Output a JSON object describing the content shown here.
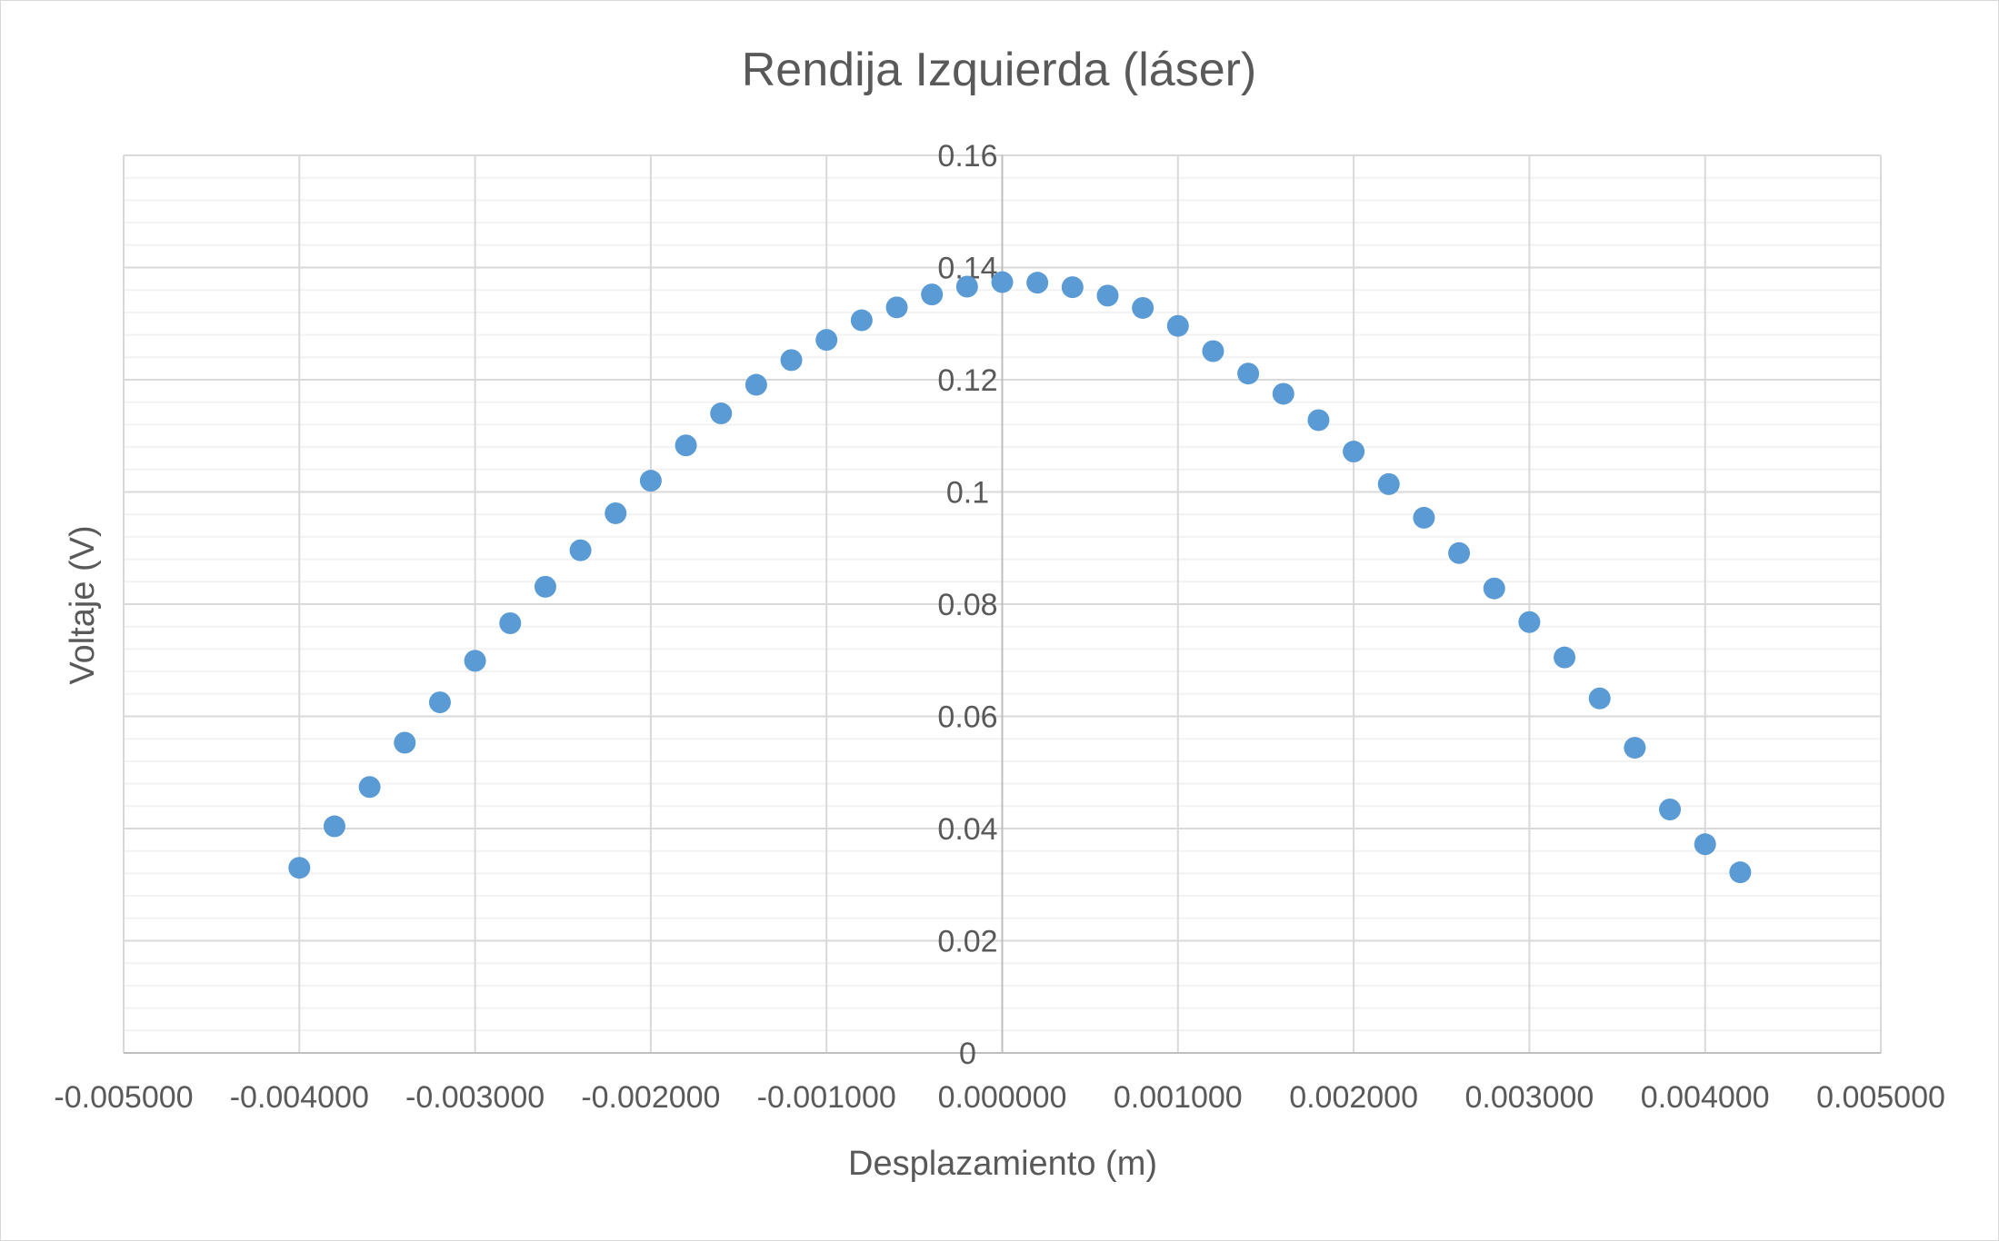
{
  "chart_data": {
    "type": "scatter",
    "title": "Rendija Izquierda (láser)",
    "xlabel": "Desplazamiento (m)",
    "ylabel": "Voltaje (V)",
    "xlim": [
      -0.005,
      0.005
    ],
    "ylim": [
      0,
      0.16
    ],
    "x_ticks": [
      -0.005,
      -0.004,
      -0.003,
      -0.002,
      -0.001,
      0,
      0.001,
      0.002,
      0.003,
      0.004,
      0.005
    ],
    "x_tick_labels": [
      "-0.005000",
      "-0.004000",
      "-0.003000",
      "-0.002000",
      "-0.001000",
      "0.000000",
      "0.001000",
      "0.002000",
      "0.003000",
      "0.004000",
      "0.005000"
    ],
    "y_ticks": [
      0,
      0.02,
      0.04,
      0.06,
      0.08,
      0.1,
      0.12,
      0.14,
      0.16
    ],
    "y_tick_labels": [
      "0",
      "0.02",
      "0.04",
      "0.06",
      "0.08",
      "0.1",
      "0.12",
      "0.14",
      "0.16"
    ],
    "grid": {
      "major": true,
      "minor": true
    },
    "series": [
      {
        "color": "#5b9bd5",
        "x": [
          -0.004,
          -0.0038,
          -0.0036,
          -0.0034,
          -0.0032,
          -0.003,
          -0.0028,
          -0.0026,
          -0.0024,
          -0.0022,
          -0.002,
          -0.0018,
          -0.0016,
          -0.0014,
          -0.0012,
          -0.001,
          -0.0008,
          -0.0006,
          -0.0004,
          -0.0002,
          0.0,
          0.0002,
          0.0004,
          0.0006,
          0.0008,
          0.001,
          0.0012,
          0.0014,
          0.0016,
          0.0018,
          0.002,
          0.0022,
          0.0024,
          0.0026,
          0.0028,
          0.003,
          0.0032,
          0.0034,
          0.0036,
          0.0038,
          0.004,
          0.0042
        ],
        "y": [
          0.033,
          0.0404,
          0.0474,
          0.0553,
          0.0625,
          0.0699,
          0.0766,
          0.0831,
          0.0896,
          0.0962,
          0.102,
          0.1083,
          0.114,
          0.1191,
          0.1235,
          0.1271,
          0.1306,
          0.1329,
          0.1352,
          0.1366,
          0.1374,
          0.1373,
          0.1365,
          0.135,
          0.1328,
          0.1296,
          0.1251,
          0.1211,
          0.1175,
          0.1128,
          0.1072,
          0.1014,
          0.0954,
          0.0891,
          0.0828,
          0.0768,
          0.0705,
          0.0632,
          0.0544,
          0.0434,
          0.0372,
          0.0322
        ]
      }
    ]
  }
}
